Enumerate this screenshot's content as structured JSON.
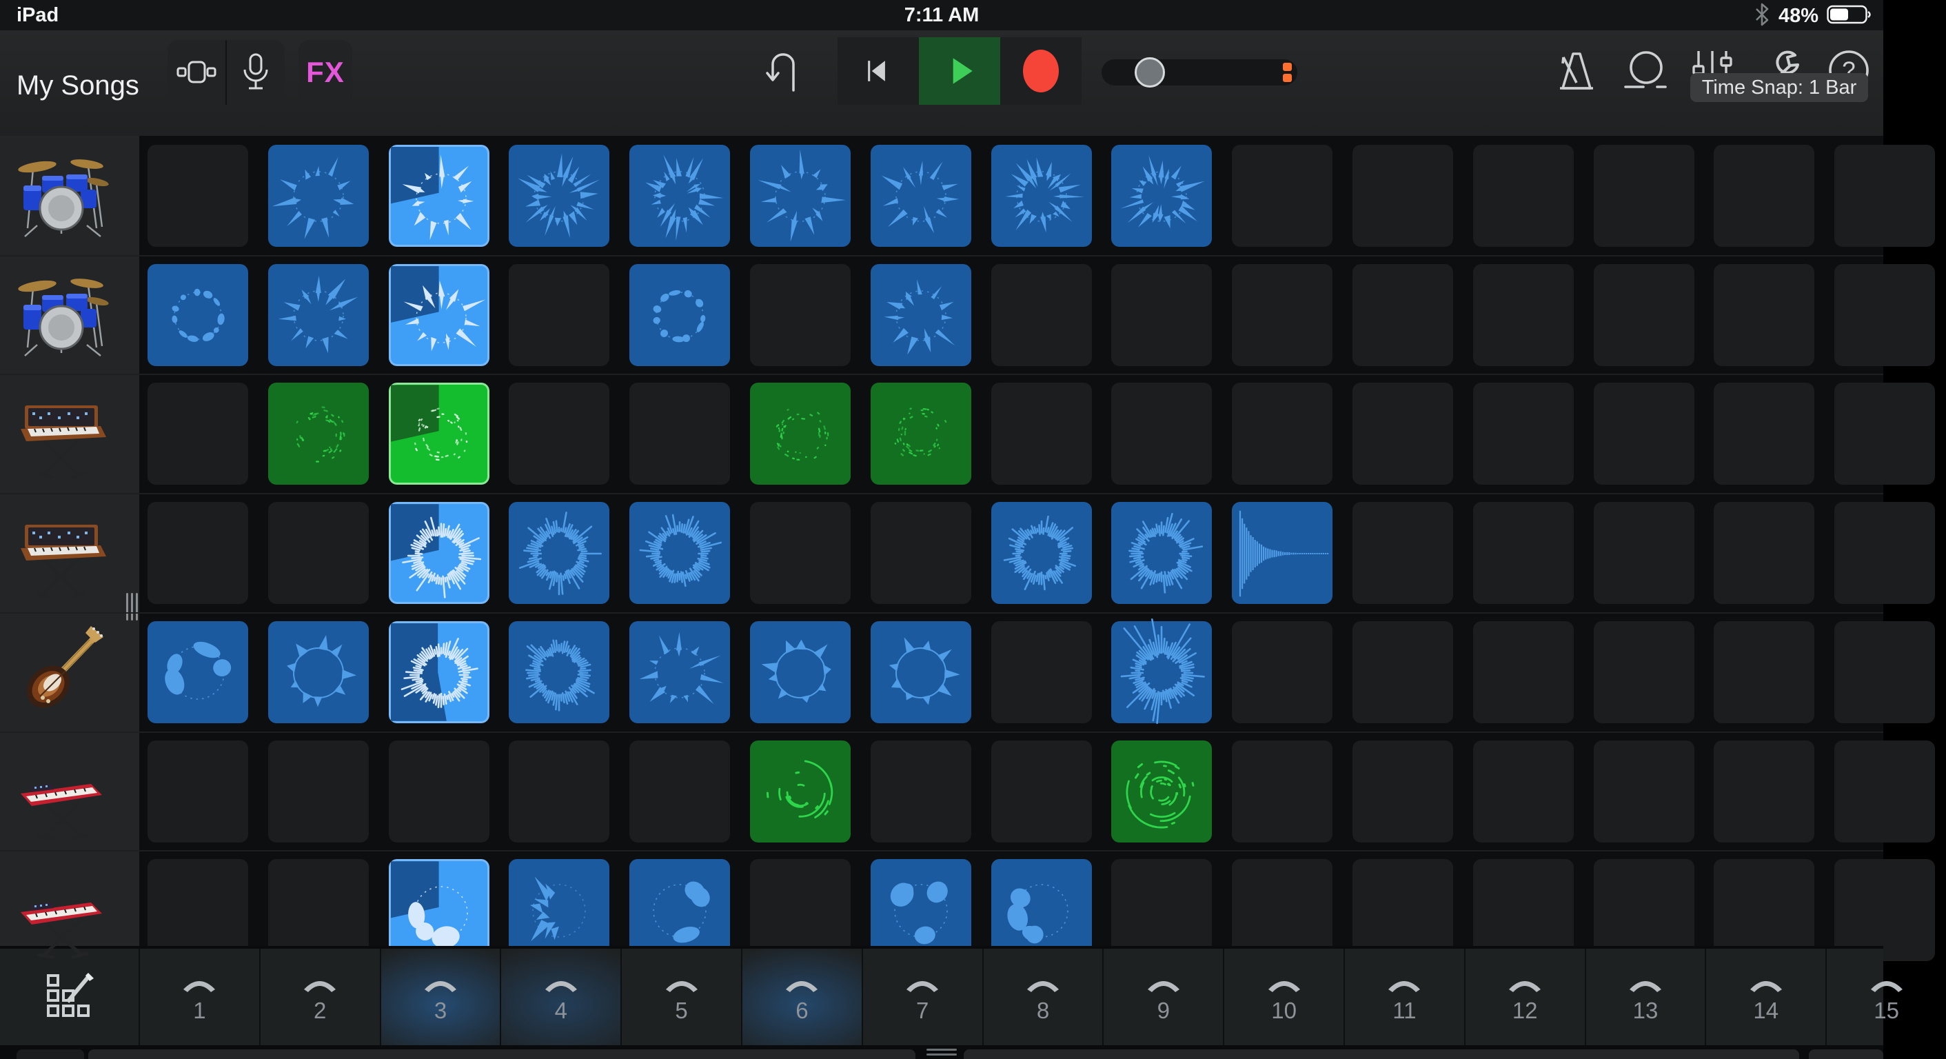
{
  "status_bar": {
    "device": "iPad",
    "time": "7:11 AM",
    "battery_percent": "48%",
    "battery_level": 0.48
  },
  "toolbar": {
    "my_songs_label": "My Songs",
    "fx_label": "FX",
    "icons": [
      "live-loops-view-icon",
      "microphone-icon",
      "undo-icon",
      "rewind-icon",
      "play-icon",
      "record-icon",
      "metronome-icon",
      "loop-browser-icon",
      "mixer-icon",
      "settings-wrench-icon",
      "help-icon"
    ],
    "volume_slider": {
      "knob_position": 0.22
    }
  },
  "time_snap_label": "Time Snap: 1 Bar",
  "tracks": [
    {
      "instrument": "drum-kit"
    },
    {
      "instrument": "drum-kit"
    },
    {
      "instrument": "vintage-synth"
    },
    {
      "instrument": "vintage-synth"
    },
    {
      "instrument": "electric-guitar"
    },
    {
      "instrument": "stage-piano"
    },
    {
      "instrument": "stage-piano"
    }
  ],
  "grid": {
    "rows": 7,
    "columns": 15,
    "cells": [
      {
        "row": 1,
        "col": 2,
        "color": "blue",
        "motif": "burst"
      },
      {
        "row": 1,
        "col": 3,
        "color": "blue",
        "motif": "burst",
        "playing": true,
        "wedge": "quadrant"
      },
      {
        "row": 1,
        "col": 4,
        "color": "blue",
        "motif": "burst_dense"
      },
      {
        "row": 1,
        "col": 5,
        "color": "blue",
        "motif": "burst_dense"
      },
      {
        "row": 1,
        "col": 6,
        "color": "blue",
        "motif": "burst"
      },
      {
        "row": 1,
        "col": 7,
        "color": "blue",
        "motif": "burst"
      },
      {
        "row": 1,
        "col": 8,
        "color": "blue",
        "motif": "burst_dense"
      },
      {
        "row": 1,
        "col": 9,
        "color": "blue",
        "motif": "burst_dense"
      },
      {
        "row": 2,
        "col": 1,
        "color": "blue",
        "motif": "ring_dots"
      },
      {
        "row": 2,
        "col": 2,
        "color": "blue",
        "motif": "burst"
      },
      {
        "row": 2,
        "col": 3,
        "color": "blue",
        "motif": "burst",
        "playing": true,
        "wedge": "quadrant"
      },
      {
        "row": 2,
        "col": 5,
        "color": "blue",
        "motif": "ring_dots"
      },
      {
        "row": 2,
        "col": 7,
        "color": "blue",
        "motif": "burst"
      },
      {
        "row": 3,
        "col": 2,
        "color": "green",
        "motif": "sparse_dots"
      },
      {
        "row": 3,
        "col": 3,
        "color": "green",
        "motif": "sparse_dots",
        "playing": true,
        "wedge": "quadrant"
      },
      {
        "row": 3,
        "col": 6,
        "color": "green",
        "motif": "sparse_dots"
      },
      {
        "row": 3,
        "col": 7,
        "color": "green",
        "motif": "sparse_dots"
      },
      {
        "row": 4,
        "col": 3,
        "color": "blue",
        "motif": "wave_ring",
        "playing": true,
        "wedge": "quadrant"
      },
      {
        "row": 4,
        "col": 4,
        "color": "blue",
        "motif": "wave_ring"
      },
      {
        "row": 4,
        "col": 5,
        "color": "blue",
        "motif": "wave_ring"
      },
      {
        "row": 4,
        "col": 8,
        "color": "blue",
        "motif": "wave_ring"
      },
      {
        "row": 4,
        "col": 9,
        "color": "blue",
        "motif": "wave_ring"
      },
      {
        "row": 4,
        "col": 10,
        "color": "blue",
        "motif": "decay"
      },
      {
        "row": 5,
        "col": 1,
        "color": "blue",
        "motif": "ring_blobs"
      },
      {
        "row": 5,
        "col": 2,
        "color": "blue",
        "motif": "ring_bumps"
      },
      {
        "row": 5,
        "col": 3,
        "color": "blue",
        "motif": "wave_ring",
        "playing": true,
        "wedge": "half"
      },
      {
        "row": 5,
        "col": 4,
        "color": "blue",
        "motif": "wave_ring"
      },
      {
        "row": 5,
        "col": 5,
        "color": "blue",
        "motif": "burst"
      },
      {
        "row": 5,
        "col": 6,
        "color": "blue",
        "motif": "ring_bumps"
      },
      {
        "row": 5,
        "col": 7,
        "color": "blue",
        "motif": "ring_bumps"
      },
      {
        "row": 5,
        "col": 9,
        "color": "blue",
        "motif": "wave_tall"
      },
      {
        "row": 6,
        "col": 6,
        "color": "green",
        "motif": "arcs"
      },
      {
        "row": 6,
        "col": 9,
        "color": "green",
        "motif": "arcs_dense"
      },
      {
        "row": 7,
        "col": 3,
        "color": "blue",
        "motif": "ring_blobs",
        "playing": true,
        "wedge": "quadrant"
      },
      {
        "row": 7,
        "col": 4,
        "color": "blue",
        "motif": "spiky_left"
      },
      {
        "row": 7,
        "col": 5,
        "color": "blue",
        "motif": "ring_blobs"
      },
      {
        "row": 7,
        "col": 7,
        "color": "blue",
        "motif": "ring_blobs"
      },
      {
        "row": 7,
        "col": 8,
        "color": "blue",
        "motif": "ring_blobs"
      }
    ]
  },
  "bottom_bar": {
    "sections": [
      {
        "label": "1"
      },
      {
        "label": "2"
      },
      {
        "label": "3",
        "glow": 0.55
      },
      {
        "label": "4",
        "glow": 0.38
      },
      {
        "label": "5"
      },
      {
        "label": "6",
        "glow": 0.5
      },
      {
        "label": "7"
      },
      {
        "label": "8"
      },
      {
        "label": "9"
      },
      {
        "label": "10"
      },
      {
        "label": "11"
      },
      {
        "label": "12"
      },
      {
        "label": "13"
      },
      {
        "label": "14"
      },
      {
        "label": "15"
      }
    ]
  },
  "colors": {
    "blue_loop_bg": "#1c5aa0",
    "blue_wave": "#4f9de6",
    "blue_playing_bg": "#3f9ff7",
    "blue_playing_wave": "#d6e9fc",
    "blue_wedge": "#1a5597",
    "green_loop_bg": "#147021",
    "green_wave": "#2fd54a",
    "green_playing_bg": "#14bd2d",
    "green_playing_wave": "#eefff2",
    "green_wedge": "#156b21",
    "fx_pink": "#e357d8",
    "play_green": "#3ecf58",
    "record_red": "#f44538",
    "slider_orange": "#ff6f2d",
    "glow_blue": "#2a6eb4"
  }
}
